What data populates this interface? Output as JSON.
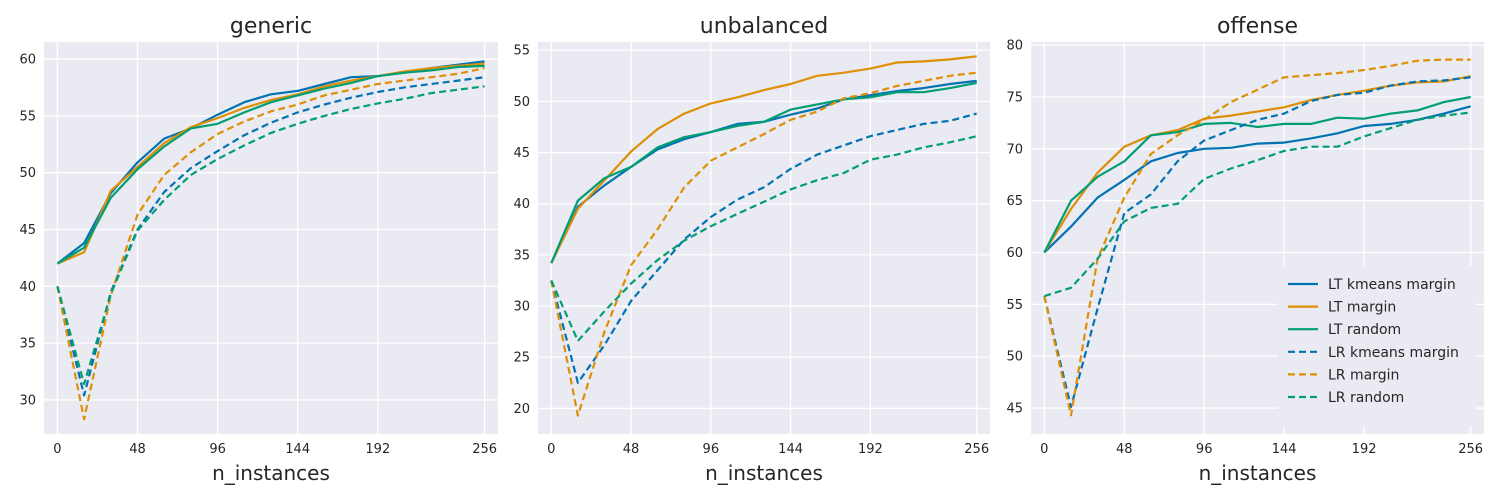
{
  "chart_data": [
    {
      "type": "line",
      "title": "generic",
      "xlabel": "n_instances",
      "ylabel": "",
      "xlim": [
        -8,
        264
      ],
      "ylim": [
        27,
        61.5
      ],
      "xticks": [
        0,
        48,
        96,
        144,
        192,
        256
      ],
      "yticks": [
        30,
        35,
        40,
        45,
        50,
        55,
        60
      ],
      "grid": true,
      "legend": null,
      "x": [
        0,
        16,
        32,
        48,
        64,
        80,
        96,
        112,
        128,
        144,
        160,
        176,
        192,
        208,
        224,
        240,
        256
      ],
      "series": [
        {
          "name": "LT kmeans margin",
          "color": "#0173b2",
          "dash": "solid",
          "values": [
            42.0,
            43.8,
            48.2,
            50.9,
            53.0,
            53.9,
            55.1,
            56.2,
            56.9,
            57.2,
            57.8,
            58.4,
            58.5,
            58.8,
            59.2,
            59.5,
            59.8
          ]
        },
        {
          "name": "LT margin",
          "color": "#de8f05",
          "dash": "solid",
          "values": [
            42.0,
            43.0,
            48.4,
            50.5,
            52.6,
            54.0,
            54.8,
            55.7,
            56.4,
            56.9,
            57.6,
            58.1,
            58.5,
            58.9,
            59.2,
            59.4,
            59.6
          ]
        },
        {
          "name": "LT random",
          "color": "#029e73",
          "dash": "solid",
          "values": [
            42.0,
            43.4,
            47.8,
            50.3,
            52.3,
            53.9,
            54.3,
            55.3,
            56.2,
            56.8,
            57.4,
            57.9,
            58.5,
            58.8,
            59.0,
            59.3,
            59.4
          ]
        },
        {
          "name": "LR kmeans margin",
          "color": "#0173b2",
          "dash": "dashed",
          "values": [
            40.0,
            30.4,
            39.5,
            45.0,
            48.3,
            50.4,
            51.9,
            53.3,
            54.4,
            55.3,
            56.0,
            56.6,
            57.1,
            57.5,
            57.8,
            58.1,
            58.4
          ]
        },
        {
          "name": "LR margin",
          "color": "#de8f05",
          "dash": "dashed",
          "values": [
            40.0,
            28.3,
            39.2,
            46.3,
            49.8,
            51.8,
            53.4,
            54.5,
            55.4,
            56.0,
            56.8,
            57.3,
            57.8,
            58.1,
            58.4,
            58.7,
            59.2
          ]
        },
        {
          "name": "LR random",
          "color": "#029e73",
          "dash": "dashed",
          "values": [
            40.0,
            31.4,
            39.3,
            44.9,
            47.6,
            49.8,
            51.2,
            52.4,
            53.5,
            54.3,
            55.0,
            55.6,
            56.1,
            56.5,
            57.0,
            57.3,
            57.6
          ]
        }
      ]
    },
    {
      "type": "line",
      "title": "unbalanced",
      "xlabel": "n_instances",
      "ylabel": "",
      "xlim": [
        -8,
        264
      ],
      "ylim": [
        17.5,
        55.8
      ],
      "xticks": [
        0,
        48,
        96,
        144,
        192,
        256
      ],
      "yticks": [
        20,
        25,
        30,
        35,
        40,
        45,
        50,
        55
      ],
      "grid": true,
      "legend": null,
      "x": [
        0,
        16,
        32,
        48,
        64,
        80,
        96,
        112,
        128,
        144,
        160,
        176,
        192,
        208,
        224,
        240,
        256
      ],
      "series": [
        {
          "name": "LT kmeans margin",
          "color": "#0173b2",
          "dash": "solid",
          "values": [
            34.2,
            39.7,
            41.8,
            43.6,
            45.3,
            46.3,
            47.0,
            47.8,
            48.0,
            48.7,
            49.3,
            50.2,
            50.6,
            51.0,
            51.3,
            51.7,
            52.0
          ]
        },
        {
          "name": "LT margin",
          "color": "#de8f05",
          "dash": "solid",
          "values": [
            34.2,
            39.5,
            42.3,
            45.1,
            47.3,
            48.8,
            49.8,
            50.4,
            51.1,
            51.7,
            52.5,
            52.8,
            53.2,
            53.8,
            53.9,
            54.1,
            54.4
          ]
        },
        {
          "name": "LT random",
          "color": "#029e73",
          "dash": "solid",
          "values": [
            34.2,
            40.3,
            42.5,
            43.6,
            45.5,
            46.5,
            47.0,
            47.6,
            48.0,
            49.2,
            49.7,
            50.2,
            50.4,
            50.9,
            50.9,
            51.3,
            51.8
          ]
        },
        {
          "name": "LR kmeans margin",
          "color": "#0173b2",
          "dash": "dashed",
          "values": [
            32.5,
            22.5,
            26.2,
            30.5,
            33.5,
            36.5,
            38.7,
            40.4,
            41.6,
            43.4,
            44.8,
            45.7,
            46.6,
            47.2,
            47.8,
            48.1,
            48.8
          ]
        },
        {
          "name": "LR margin",
          "color": "#de8f05",
          "dash": "dashed",
          "values": [
            32.5,
            19.3,
            27.5,
            34.0,
            37.5,
            41.6,
            44.2,
            45.5,
            46.8,
            48.2,
            49.0,
            50.3,
            50.8,
            51.5,
            52.0,
            52.5,
            52.8
          ]
        },
        {
          "name": "LR random",
          "color": "#029e73",
          "dash": "dashed",
          "values": [
            32.5,
            26.6,
            29.5,
            32.2,
            34.5,
            36.4,
            37.8,
            39.0,
            40.2,
            41.4,
            42.3,
            43.0,
            44.3,
            44.8,
            45.5,
            46.0,
            46.6
          ]
        }
      ]
    },
    {
      "type": "line",
      "title": "offense",
      "xlabel": "n_instances",
      "ylabel": "",
      "xlim": [
        -8,
        264
      ],
      "ylim": [
        42.5,
        80.3
      ],
      "xticks": [
        0,
        48,
        96,
        144,
        192,
        256
      ],
      "yticks": [
        45,
        50,
        55,
        60,
        65,
        70,
        75,
        80
      ],
      "grid": true,
      "legend": "lower-right",
      "x": [
        0,
        16,
        32,
        48,
        64,
        80,
        96,
        112,
        128,
        144,
        160,
        176,
        192,
        208,
        224,
        240,
        256
      ],
      "series": [
        {
          "name": "LT kmeans margin",
          "color": "#0173b2",
          "dash": "solid",
          "values": [
            60.0,
            62.5,
            65.3,
            67.0,
            68.8,
            69.6,
            70.0,
            70.1,
            70.5,
            70.6,
            71.0,
            71.5,
            72.2,
            72.4,
            72.8,
            73.4,
            74.1
          ]
        },
        {
          "name": "LT margin",
          "color": "#de8f05",
          "dash": "solid",
          "values": [
            60.0,
            64.2,
            67.7,
            70.2,
            71.3,
            71.8,
            72.9,
            73.2,
            73.6,
            74.0,
            74.7,
            75.2,
            75.6,
            76.1,
            76.4,
            76.5,
            77.0
          ]
        },
        {
          "name": "LT random",
          "color": "#029e73",
          "dash": "solid",
          "values": [
            60.0,
            65.0,
            67.3,
            68.8,
            71.3,
            71.6,
            72.4,
            72.5,
            72.1,
            72.4,
            72.4,
            73.0,
            72.9,
            73.4,
            73.7,
            74.5,
            75.0
          ]
        },
        {
          "name": "LR kmeans margin",
          "color": "#0173b2",
          "dash": "dashed",
          "values": [
            55.8,
            45.1,
            54.6,
            63.8,
            65.6,
            68.8,
            70.8,
            71.8,
            72.8,
            73.4,
            74.6,
            75.2,
            75.4,
            76.1,
            76.5,
            76.6,
            76.9
          ]
        },
        {
          "name": "LR margin",
          "color": "#de8f05",
          "dash": "dashed",
          "values": [
            55.8,
            44.3,
            59.4,
            65.3,
            69.5,
            71.3,
            72.8,
            74.5,
            75.7,
            76.9,
            77.1,
            77.3,
            77.6,
            78.0,
            78.5,
            78.6,
            78.6
          ]
        },
        {
          "name": "LR random",
          "color": "#029e73",
          "dash": "dashed",
          "values": [
            55.8,
            56.6,
            59.4,
            63.0,
            64.3,
            64.7,
            67.1,
            68.1,
            68.9,
            69.8,
            70.2,
            70.2,
            71.2,
            72.0,
            72.8,
            73.2,
            73.5
          ]
        }
      ]
    }
  ]
}
